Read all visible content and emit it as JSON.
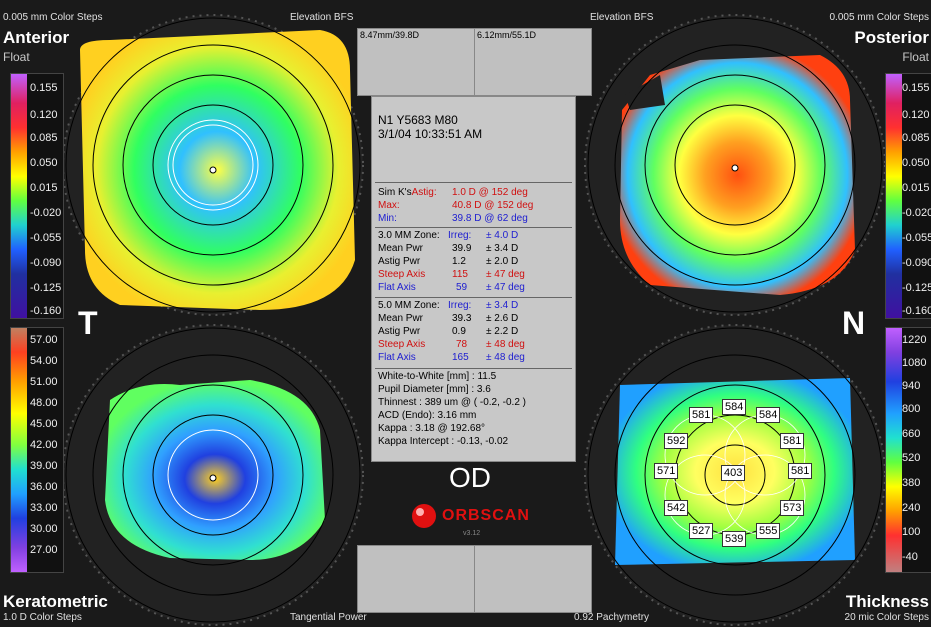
{
  "anterior": {
    "steps": "0.005 mm Color Steps",
    "title": "Anterior",
    "subtitle": "Float",
    "bfs": "Elevation BFS"
  },
  "posterior": {
    "steps": "0.005 mm Color Steps",
    "title": "Posterior",
    "subtitle": "Float",
    "bfs": "Elevation BFS"
  },
  "keratometric": {
    "title": "Keratometric",
    "steps": "1.0 D Color Steps",
    "mode": "Tangential Power"
  },
  "thickness": {
    "title": "Thickness",
    "steps": "20 mic Color Steps",
    "mode": "0.92 Pachymetry"
  },
  "markers": {
    "temporal": "T",
    "nasal": "N"
  },
  "scale_left_top": [
    "0.155",
    "0.120",
    "0.085",
    "0.050",
    "0.015",
    "-0.020",
    "-0.055",
    "-0.090",
    "-0.125",
    "-0.160"
  ],
  "scale_left_bottom": [
    "57.00",
    "54.00",
    "51.00",
    "48.00",
    "45.00",
    "42.00",
    "39.00",
    "36.00",
    "33.00",
    "30.00",
    "27.00"
  ],
  "scale_right_top": [
    "0.155",
    "0.120",
    "0.085",
    "0.050",
    "0.015",
    "-0.020",
    "-0.055",
    "-0.090",
    "-0.125",
    "-0.160"
  ],
  "scale_right_bottom": [
    "1220",
    "1080",
    "940",
    "800",
    "660",
    "520",
    "380",
    "240",
    "100",
    "-40"
  ],
  "top_boxes": {
    "left": "8.47mm/39.8D",
    "right": "6.12mm/55.1D"
  },
  "info": {
    "patient": "N1 Y5683 M80",
    "datetime": "3/1/04 10:33:51 AM",
    "simk_label": "Sim K's",
    "simk_astig_label": "Astig:",
    "simk_astig": "1.0 D   @ 152 deg",
    "max_label": "Max:",
    "max": "40.8 D  @ 152 deg",
    "min_label": "Min:",
    "min": "39.8 D  @ 62 deg",
    "zone3": {
      "title": "3.0 MM Zone:",
      "irreg_label": "Irreg:",
      "irreg": "± 4.0 D",
      "mean_label": "Mean Pwr",
      "mean": "39.9",
      "mean_pm": "± 3.4 D",
      "astig_label": "Astig Pwr",
      "astig": "1.2",
      "astig_pm": "± 2.0 D",
      "steep_label": "Steep Axis",
      "steep": "115",
      "steep_pm": "± 47 deg",
      "flat_label": "Flat Axis",
      "flat": "59",
      "flat_pm": "± 47 deg"
    },
    "zone5": {
      "title": "5.0 MM Zone:",
      "irreg_label": "Irreg:",
      "irreg": "± 3.4 D",
      "mean_label": "Mean Pwr",
      "mean": "39.3",
      "mean_pm": "± 2.6 D",
      "astig_label": "Astig Pwr",
      "astig": "0.9",
      "astig_pm": "± 2.2 D",
      "steep_label": "Steep Axis",
      "steep": "78",
      "steep_pm": "± 48 deg",
      "flat_label": "Flat Axis",
      "flat": "165",
      "flat_pm": "± 48 deg"
    },
    "wtw": "White-to-White [mm] : 11.5",
    "pupil": "Pupil Diameter [mm] :  3.6",
    "thinnest": "Thinnest : 389 um @ ( -0.2, -0.2 )",
    "acd": "ACD (Endo): 3.16 mm",
    "kappa": "Kappa : 3.18 @ 192.68°",
    "kappa_intercept": "Kappa Intercept : -0.13, -0.02"
  },
  "eye": "OD",
  "brand": {
    "name": "ORBSCAN",
    "version": "v3.12"
  },
  "thickness_values": [
    "581",
    "584",
    "584",
    "592",
    "581",
    "571",
    "403",
    "581",
    "542",
    "573",
    "527",
    "539",
    "555"
  ]
}
